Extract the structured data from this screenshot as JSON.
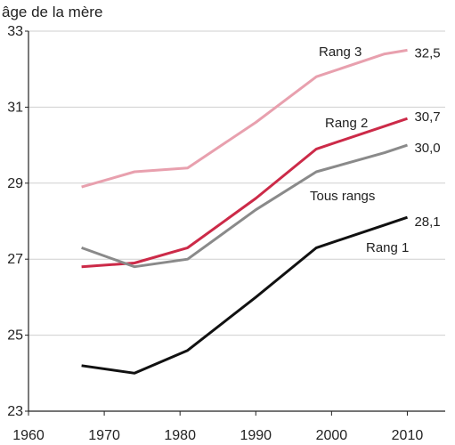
{
  "chart_data": {
    "type": "line",
    "ylabel": "âge de la mère",
    "xlim": [
      1960,
      2015
    ],
    "ylim": [
      23,
      33
    ],
    "x_ticks": [
      1960,
      1970,
      1980,
      1990,
      2000,
      2010
    ],
    "x_tick_labels": [
      "1960",
      "1970",
      "1980",
      "1990",
      "2000",
      "2010"
    ],
    "y_ticks": [
      23,
      25,
      27,
      29,
      31,
      33
    ],
    "y_tick_labels": [
      "23",
      "25",
      "27",
      "29",
      "31",
      "33"
    ],
    "grid": "horizontal",
    "legend": "inline",
    "series": [
      {
        "name": "Rang 3",
        "color": "#e8a0ae",
        "end_label": "32,5",
        "x": [
          1967,
          1974,
          1981,
          1990,
          1998,
          2007,
          2010
        ],
        "y": [
          28.9,
          29.3,
          29.4,
          30.6,
          31.8,
          32.4,
          32.5
        ]
      },
      {
        "name": "Rang 2",
        "color": "#cc2a48",
        "end_label": "30,7",
        "x": [
          1967,
          1974,
          1981,
          1990,
          1998,
          2007,
          2010
        ],
        "y": [
          26.8,
          26.9,
          27.3,
          28.6,
          29.9,
          30.5,
          30.7
        ]
      },
      {
        "name": "Tous rangs",
        "color": "#8a8a8a",
        "end_label": "30,0",
        "x": [
          1967,
          1974,
          1981,
          1990,
          1998,
          2007,
          2010
        ],
        "y": [
          27.3,
          26.8,
          27.0,
          28.3,
          29.3,
          29.8,
          30.0
        ]
      },
      {
        "name": "Rang 1",
        "color": "#111111",
        "end_label": "28,1",
        "x": [
          1967,
          1974,
          1981,
          1990,
          1998,
          2007,
          2010
        ],
        "y": [
          24.2,
          24.0,
          24.6,
          26.0,
          27.3,
          27.9,
          28.1
        ]
      }
    ]
  }
}
